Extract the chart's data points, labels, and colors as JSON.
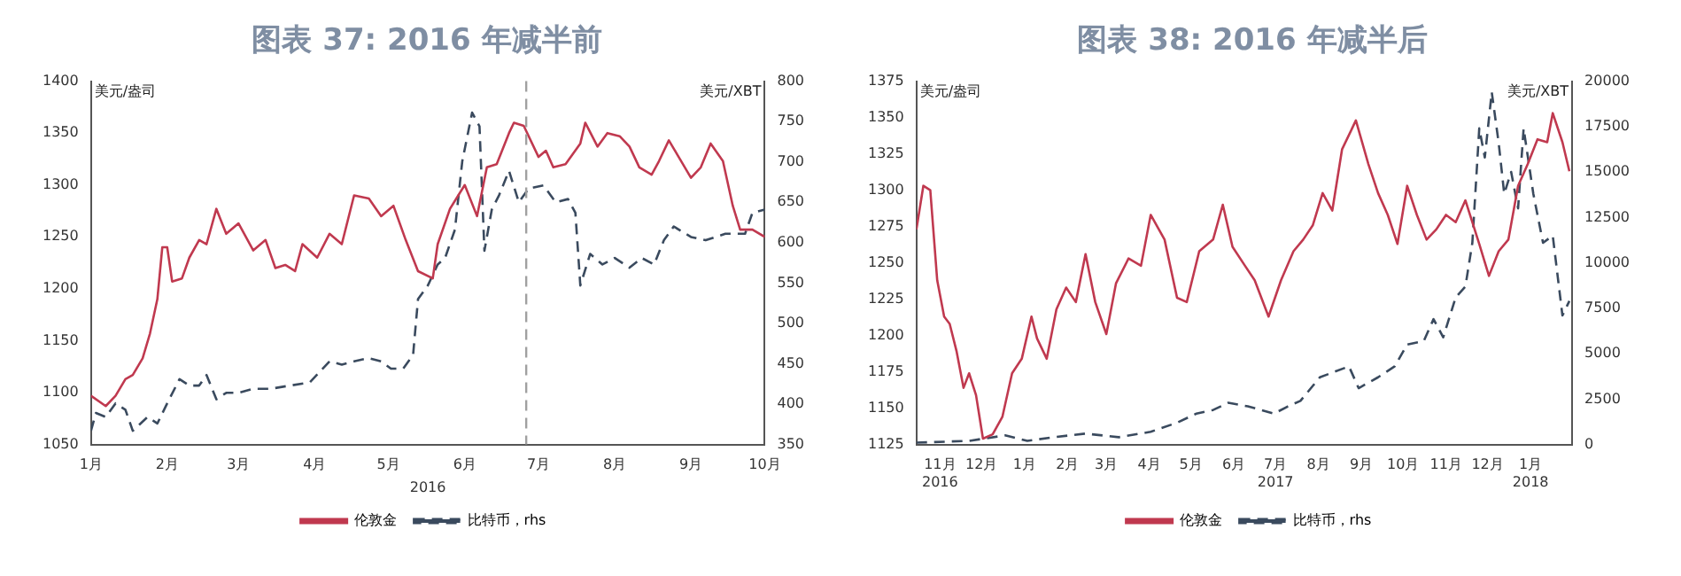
{
  "chart_data": [
    {
      "type": "line",
      "title": "图表 37: 2016 年减半前",
      "xlabel": "2016",
      "ylabel": "美元/盎司",
      "y2label": "美元/XBT",
      "legend": "bottom",
      "grid": false,
      "xlim": [
        "2016-01-01",
        "2016-10-01"
      ],
      "xticks": [
        {
          "value": "2016-01-01",
          "label": "1月"
        },
        {
          "value": "2016-02-01",
          "label": "2月"
        },
        {
          "value": "2016-03-01",
          "label": "3月"
        },
        {
          "value": "2016-04-01",
          "label": "4月"
        },
        {
          "value": "2016-05-01",
          "label": "5月"
        },
        {
          "value": "2016-06-01",
          "label": "6月"
        },
        {
          "value": "2016-07-01",
          "label": "7月"
        },
        {
          "value": "2016-08-01",
          "label": "8月"
        },
        {
          "value": "2016-09-01",
          "label": "9月"
        },
        {
          "value": "2016-10-01",
          "label": "10月"
        }
      ],
      "ylim": [
        1050,
        1400
      ],
      "yticks": [
        1050,
        1100,
        1150,
        1200,
        1250,
        1300,
        1350,
        1400
      ],
      "y2lim": [
        350,
        800
      ],
      "y2ticks": [
        350,
        400,
        450,
        500,
        550,
        600,
        650,
        700,
        750,
        800
      ],
      "ref_lines": [
        {
          "axis": "x",
          "value": "2016-06-26",
          "color": "#a0a0a0",
          "line_style": "dashed"
        }
      ],
      "series": [
        {
          "name": "伦敦金",
          "color": "#c0394f",
          "line_style": "solid",
          "x": [
            "2016-01-01",
            "2016-01-07",
            "2016-01-11",
            "2016-01-15",
            "2016-01-18",
            "2016-01-22",
            "2016-01-25",
            "2016-01-28",
            "2016-01-30",
            "2016-02-01",
            "2016-02-03",
            "2016-02-07",
            "2016-02-10",
            "2016-02-14",
            "2016-02-17",
            "2016-02-21",
            "2016-02-25",
            "2016-03-01",
            "2016-03-07",
            "2016-03-12",
            "2016-03-16",
            "2016-03-20",
            "2016-03-24",
            "2016-03-27",
            "2016-04-02",
            "2016-04-07",
            "2016-04-12",
            "2016-04-17",
            "2016-04-23",
            "2016-04-28",
            "2016-05-03",
            "2016-05-08",
            "2016-05-13",
            "2016-05-19",
            "2016-05-21",
            "2016-05-26",
            "2016-06-01",
            "2016-06-06",
            "2016-06-10",
            "2016-06-14",
            "2016-06-19",
            "2016-06-21",
            "2016-06-25",
            "2016-07-01",
            "2016-07-04",
            "2016-07-07",
            "2016-07-12",
            "2016-07-18",
            "2016-07-20",
            "2016-07-25",
            "2016-07-29",
            "2016-08-03",
            "2016-08-07",
            "2016-08-11",
            "2016-08-16",
            "2016-08-19",
            "2016-08-23",
            "2016-08-27",
            "2016-09-01",
            "2016-09-05",
            "2016-09-09",
            "2016-09-14",
            "2016-09-18",
            "2016-09-21",
            "2016-09-26",
            "2016-10-01"
          ],
          "values": [
            1097,
            1087,
            1097,
            1113,
            1117,
            1133,
            1157,
            1190,
            1240,
            1240,
            1207,
            1210,
            1230,
            1247,
            1243,
            1277,
            1253,
            1263,
            1237,
            1247,
            1220,
            1223,
            1217,
            1243,
            1230,
            1253,
            1243,
            1290,
            1287,
            1270,
            1280,
            1247,
            1217,
            1210,
            1243,
            1277,
            1300,
            1270,
            1317,
            1320,
            1350,
            1360,
            1357,
            1327,
            1333,
            1317,
            1320,
            1340,
            1360,
            1337,
            1350,
            1347,
            1337,
            1317,
            1310,
            1323,
            1343,
            1327,
            1307,
            1317,
            1340,
            1323,
            1280,
            1257,
            1257,
            1250
          ]
        },
        {
          "name": "比特币，rhs",
          "color": "#3a4a5e",
          "line_style": "dashed",
          "axis": "y2",
          "x": [
            "2016-01-01",
            "2016-01-03",
            "2016-01-07",
            "2016-01-11",
            "2016-01-15",
            "2016-01-18",
            "2016-01-24",
            "2016-01-28",
            "2016-02-01",
            "2016-02-06",
            "2016-02-10",
            "2016-02-14",
            "2016-02-17",
            "2016-02-21",
            "2016-02-25",
            "2016-03-01",
            "2016-03-07",
            "2016-03-14",
            "2016-03-22",
            "2016-03-30",
            "2016-04-07",
            "2016-04-12",
            "2016-04-17",
            "2016-04-23",
            "2016-04-28",
            "2016-05-02",
            "2016-05-07",
            "2016-05-11",
            "2016-05-13",
            "2016-05-17",
            "2016-05-21",
            "2016-05-24",
            "2016-05-28",
            "2016-05-31",
            "2016-06-04",
            "2016-06-07",
            "2016-06-09",
            "2016-06-12",
            "2016-06-15",
            "2016-06-19",
            "2016-06-23",
            "2016-06-27",
            "2016-07-03",
            "2016-07-08",
            "2016-07-13",
            "2016-07-16",
            "2016-07-18",
            "2016-07-22",
            "2016-07-27",
            "2016-08-01",
            "2016-08-07",
            "2016-08-12",
            "2016-08-17",
            "2016-08-21",
            "2016-08-25",
            "2016-09-01",
            "2016-09-07",
            "2016-09-15",
            "2016-09-23",
            "2016-09-26",
            "2016-10-01"
          ],
          "values": [
            367,
            389,
            384,
            401,
            393,
            367,
            384,
            376,
            401,
            431,
            423,
            423,
            436,
            406,
            414,
            414,
            419,
            419,
            423,
            427,
            453,
            449,
            453,
            457,
            453,
            444,
            444,
            461,
            530,
            547,
            573,
            581,
            616,
            701,
            761,
            744,
            590,
            641,
            659,
            689,
            650,
            667,
            671,
            650,
            654,
            637,
            547,
            586,
            573,
            581,
            569,
            581,
            573,
            603,
            620,
            607,
            603,
            611,
            611,
            637,
            641
          ]
        }
      ]
    },
    {
      "type": "line",
      "title": "图表 38: 2016 年减半后",
      "ylabel": "美元/盎司",
      "y2label": "美元/XBT",
      "legend": "bottom",
      "grid": false,
      "xlim": [
        "2016-10-29",
        "2018-02-14"
      ],
      "xticks": [
        {
          "value": "2016-11-15",
          "label": "11月\n2016"
        },
        {
          "value": "2016-12-15",
          "label": "12月"
        },
        {
          "value": "2017-01-15",
          "label": "1月"
        },
        {
          "value": "2017-02-15",
          "label": "2月"
        },
        {
          "value": "2017-03-15",
          "label": "3月"
        },
        {
          "value": "2017-04-15",
          "label": "4月"
        },
        {
          "value": "2017-05-15",
          "label": "5月"
        },
        {
          "value": "2017-06-15",
          "label": "6月"
        },
        {
          "value": "2017-07-15",
          "label": "7月\n2017"
        },
        {
          "value": "2017-08-15",
          "label": "8月"
        },
        {
          "value": "2017-09-15",
          "label": "9月"
        },
        {
          "value": "2017-10-15",
          "label": "10月"
        },
        {
          "value": "2017-11-15",
          "label": "11月"
        },
        {
          "value": "2017-12-15",
          "label": "12月"
        },
        {
          "value": "2018-01-15",
          "label": "1月\n2018"
        }
      ],
      "ylim": [
        1125,
        1375
      ],
      "yticks": [
        1125,
        1150,
        1175,
        1200,
        1225,
        1250,
        1275,
        1300,
        1325,
        1350,
        1375
      ],
      "y2lim": [
        0,
        20000
      ],
      "y2ticks": [
        0,
        2500,
        5000,
        7500,
        10000,
        12500,
        15000,
        17500,
        20000
      ],
      "series": [
        {
          "name": "伦敦金",
          "color": "#c0394f",
          "line_style": "solid",
          "x": [
            "2016-10-29",
            "2016-11-03",
            "2016-11-08",
            "2016-11-13",
            "2016-11-18",
            "2016-11-22",
            "2016-11-27",
            "2016-12-02",
            "2016-12-06",
            "2016-12-11",
            "2016-12-16",
            "2016-12-23",
            "2016-12-30",
            "2017-01-06",
            "2017-01-13",
            "2017-01-20",
            "2017-01-24",
            "2017-01-31",
            "2017-02-07",
            "2017-02-14",
            "2017-02-21",
            "2017-02-28",
            "2017-03-07",
            "2017-03-15",
            "2017-03-22",
            "2017-03-31",
            "2017-04-09",
            "2017-04-16",
            "2017-04-26",
            "2017-05-05",
            "2017-05-12",
            "2017-05-21",
            "2017-05-31",
            "2017-06-07",
            "2017-06-14",
            "2017-06-23",
            "2017-06-30",
            "2017-07-10",
            "2017-07-19",
            "2017-07-28",
            "2017-08-04",
            "2017-08-11",
            "2017-08-18",
            "2017-08-25",
            "2017-09-01",
            "2017-09-11",
            "2017-09-20",
            "2017-09-27",
            "2017-10-04",
            "2017-10-11",
            "2017-10-18",
            "2017-10-25",
            "2017-11-01",
            "2017-11-08",
            "2017-11-15",
            "2017-11-22",
            "2017-11-29",
            "2017-12-09",
            "2017-12-16",
            "2017-12-23",
            "2017-12-30",
            "2018-01-06",
            "2018-01-13",
            "2018-01-20",
            "2018-01-27",
            "2018-01-31",
            "2018-02-07",
            "2018-02-12"
          ],
          "values": [
            1273,
            1303,
            1300,
            1238,
            1213,
            1208,
            1189,
            1164,
            1174,
            1159,
            1129,
            1132,
            1144,
            1174,
            1184,
            1213,
            1198,
            1184,
            1218,
            1233,
            1223,
            1256,
            1223,
            1201,
            1236,
            1253,
            1248,
            1283,
            1266,
            1226,
            1223,
            1258,
            1266,
            1290,
            1261,
            1248,
            1238,
            1213,
            1238,
            1258,
            1266,
            1276,
            1298,
            1286,
            1328,
            1348,
            1318,
            1298,
            1283,
            1263,
            1303,
            1283,
            1266,
            1273,
            1283,
            1278,
            1293,
            1263,
            1241,
            1258,
            1266,
            1303,
            1318,
            1335,
            1333,
            1353,
            1333,
            1313
          ]
        },
        {
          "name": "比特币，rhs",
          "color": "#3a4a5e",
          "line_style": "dashed",
          "axis": "y2",
          "x": [
            "2016-10-29",
            "2016-12-06",
            "2017-01-01",
            "2017-01-17",
            "2017-02-05",
            "2017-02-28",
            "2017-03-24",
            "2017-04-16",
            "2017-05-05",
            "2017-05-19",
            "2017-05-31",
            "2017-06-11",
            "2017-06-25",
            "2017-07-14",
            "2017-07-24",
            "2017-08-02",
            "2017-08-16",
            "2017-09-06",
            "2017-09-13",
            "2017-09-27",
            "2017-10-09",
            "2017-10-18",
            "2017-10-30",
            "2017-11-06",
            "2017-11-13",
            "2017-11-22",
            "2017-11-29",
            "2017-12-04",
            "2017-12-09",
            "2017-12-13",
            "2017-12-18",
            "2017-12-23",
            "2017-12-27",
            "2018-01-01",
            "2018-01-06",
            "2018-01-10",
            "2018-01-17",
            "2018-01-24",
            "2018-01-31",
            "2018-02-07",
            "2018-02-12"
          ],
          "values": [
            100,
            200,
            500,
            200,
            400,
            600,
            400,
            700,
            1200,
            1700,
            1900,
            2300,
            2100,
            1700,
            2100,
            2400,
            3700,
            4300,
            3100,
            3700,
            4300,
            5500,
            5700,
            6900,
            5900,
            8100,
            8700,
            11100,
            17400,
            15800,
            19400,
            16600,
            13800,
            15000,
            13000,
            17400,
            13800,
            11100,
            11500,
            7100,
            7900
          ]
        }
      ]
    }
  ]
}
